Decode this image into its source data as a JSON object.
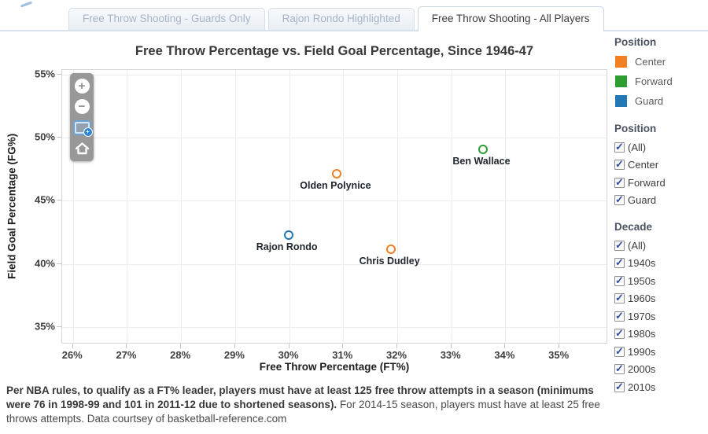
{
  "tabs": [
    {
      "label": "Free Throw Shooting - Guards Only",
      "active": false
    },
    {
      "label": "Rajon Rondo Highlighted",
      "active": false
    },
    {
      "label": "Free Throw Shooting - All Players",
      "active": true
    }
  ],
  "chart_data": {
    "type": "scatter",
    "title": "Free Throw Percentage vs. Field Goal Percentage, Since 1946-47",
    "xlabel": "Free Throw Percentage (FT%)",
    "ylabel": "Field Goal Percentage (FG%)",
    "xlim": [
      25.8,
      35.9
    ],
    "ylim": [
      33.6,
      55.4
    ],
    "xticks": [
      26,
      27,
      28,
      29,
      30,
      31,
      32,
      33,
      34,
      35
    ],
    "yticks": [
      35,
      40,
      45,
      50,
      55
    ],
    "tick_suffix": "%",
    "grid": true,
    "legend_position": "right",
    "points": [
      {
        "name": "Ben Wallace",
        "x": 33.6,
        "y": 49.0,
        "position": "Forward",
        "color": "#2f9e32"
      },
      {
        "name": "Olden Polynice",
        "x": 30.9,
        "y": 47.1,
        "position": "Center",
        "color": "#f28022"
      },
      {
        "name": "Rajon Rondo",
        "x": 30.0,
        "y": 42.2,
        "position": "Guard",
        "color": "#2277b5"
      },
      {
        "name": "Chris Dudley",
        "x": 31.9,
        "y": 41.1,
        "position": "Center",
        "color": "#f28022"
      }
    ]
  },
  "toolbar": {
    "buttons": [
      {
        "name": "zoom-in",
        "glyph": "+"
      },
      {
        "name": "zoom-out",
        "glyph": "−"
      },
      {
        "name": "zoom-box",
        "glyph": ""
      },
      {
        "name": "home",
        "glyph": ""
      }
    ]
  },
  "legend": {
    "title": "Position",
    "items": [
      {
        "label": "Center",
        "color": "#f28022"
      },
      {
        "label": "Forward",
        "color": "#2f9e32"
      },
      {
        "label": "Guard",
        "color": "#2277b5"
      }
    ]
  },
  "filters": [
    {
      "title": "Position",
      "options": [
        {
          "label": "(All)",
          "checked": true
        },
        {
          "label": "Center",
          "checked": true
        },
        {
          "label": "Forward",
          "checked": true
        },
        {
          "label": "Guard",
          "checked": true
        }
      ]
    },
    {
      "title": "Decade",
      "options": [
        {
          "label": "(All)",
          "checked": true
        },
        {
          "label": "1940s",
          "checked": true
        },
        {
          "label": "1950s",
          "checked": true
        },
        {
          "label": "1960s",
          "checked": true
        },
        {
          "label": "1970s",
          "checked": true
        },
        {
          "label": "1980s",
          "checked": true
        },
        {
          "label": "1990s",
          "checked": true
        },
        {
          "label": "2000s",
          "checked": true
        },
        {
          "label": "2010s",
          "checked": true
        }
      ]
    }
  ],
  "footer": {
    "bold": "Per NBA rules, to qualify as a FT% leader, players must have at least 125 free throw attempts in a season (minimums were 76 in 1998-99 and 101 in 2011-12 due to shortened seasons).",
    "normal": " For 2014-15 season, players must have at least 25 free throws attempts. Data courtsey of basketball-reference.com"
  },
  "colors": {
    "center": "#f28022",
    "forward": "#2f9e32",
    "guard": "#2277b5",
    "tab_underline": "#d9e1eb",
    "gridline": "#ececec",
    "checkbox_check": "#2d4f9e"
  }
}
